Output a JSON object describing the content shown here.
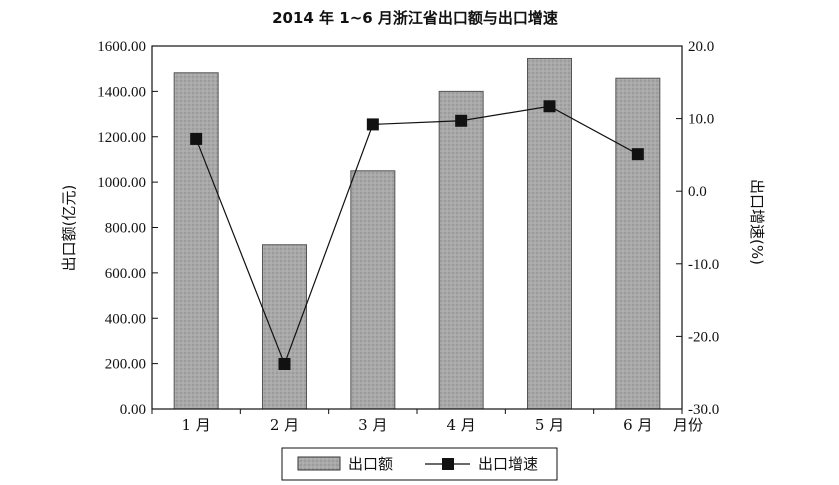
{
  "chart_data": {
    "type": "bar",
    "title": "2014 年 1~6 月浙江省出口额与出口增速",
    "categories": [
      "1 月",
      "2 月",
      "3 月",
      "4 月",
      "5 月",
      "6 月"
    ],
    "xlabel": "月份",
    "ylabel_left": "出口额(亿元)",
    "ylabel_right": "出口增速(%)",
    "left_axis": {
      "ylim": [
        0,
        1600
      ],
      "ticks": [
        0,
        200,
        400,
        600,
        800,
        1000,
        1200,
        1400,
        1600
      ],
      "tick_labels": [
        "0.00",
        "200.00",
        "400.00",
        "600.00",
        "800.00",
        "1000.00",
        "1200.00",
        "1400.00",
        "1600.00"
      ]
    },
    "right_axis": {
      "ylim": [
        -30,
        20
      ],
      "ticks": [
        -30,
        -20,
        -10,
        0,
        10,
        20
      ],
      "tick_labels": [
        "-30.0",
        "-20.0",
        "-10.0",
        "0.0",
        "10.0",
        "20.0"
      ]
    },
    "series": [
      {
        "name": "出口额",
        "kind": "bar",
        "axis": "left",
        "values": [
          1482,
          724,
          1050,
          1400,
          1545,
          1458
        ],
        "color": "#a8a8a8"
      },
      {
        "name": "出口增速",
        "kind": "line",
        "axis": "right",
        "values": [
          7.2,
          -23.8,
          9.2,
          9.7,
          11.7,
          5.1
        ],
        "color": "#111111"
      }
    ],
    "grid": false,
    "legend": "bottom"
  }
}
